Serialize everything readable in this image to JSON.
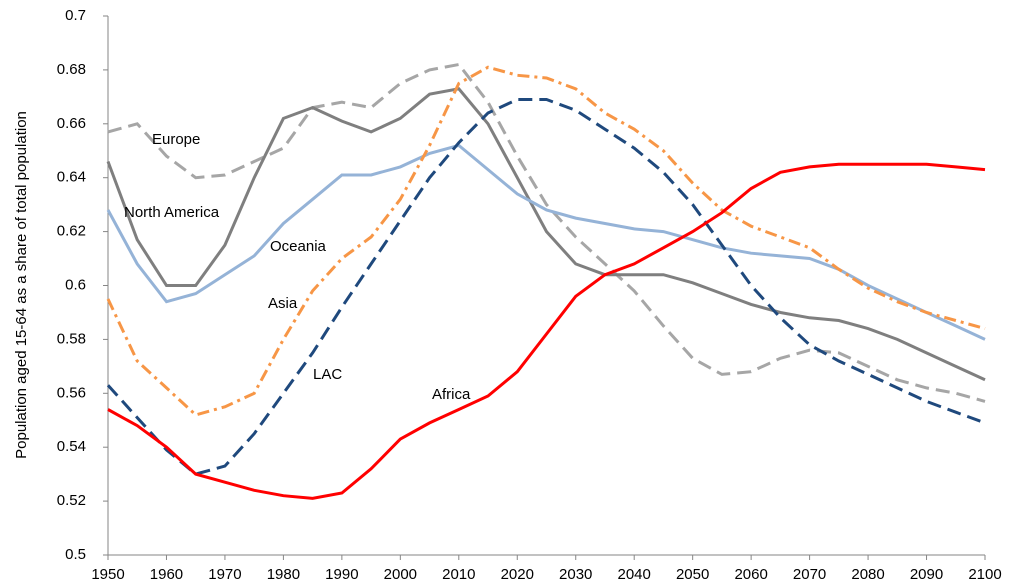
{
  "chart_data": {
    "type": "line",
    "y_label": "Population aged 15-64 as a share of total population",
    "x": [
      1950,
      1955,
      1960,
      1965,
      1970,
      1975,
      1980,
      1985,
      1990,
      1995,
      2000,
      2005,
      2010,
      2015,
      2020,
      2025,
      2030,
      2035,
      2040,
      2045,
      2050,
      2055,
      2060,
      2065,
      2070,
      2075,
      2080,
      2085,
      2090,
      2095,
      2100
    ],
    "xlim": [
      1950,
      2100
    ],
    "xticks": [
      1950,
      1960,
      1970,
      1980,
      1990,
      2000,
      2010,
      2020,
      2030,
      2040,
      2050,
      2060,
      2070,
      2080,
      2090,
      2100
    ],
    "ylim": [
      0.5,
      0.7
    ],
    "yticks": [
      0.5,
      0.52,
      0.54,
      0.56,
      0.58,
      0.6,
      0.62,
      0.64,
      0.66,
      0.68,
      0.7
    ],
    "grid": false,
    "series": [
      {
        "name": "Europe",
        "color": "#a6a6a6",
        "dash": "dashed",
        "values": [
          0.657,
          0.66,
          0.648,
          0.64,
          0.641,
          0.646,
          0.651,
          0.666,
          0.668,
          0.666,
          0.675,
          0.68,
          0.682,
          0.668,
          0.648,
          0.63,
          0.618,
          0.608,
          0.598,
          0.585,
          0.573,
          0.567,
          0.568,
          0.573,
          0.576,
          0.575,
          0.57,
          0.565,
          0.562,
          0.56,
          0.557
        ]
      },
      {
        "name": "North America",
        "color": "#7f7f7f",
        "dash": "solid",
        "values": [
          0.646,
          0.617,
          0.6,
          0.6,
          0.615,
          0.64,
          0.662,
          0.666,
          0.661,
          0.657,
          0.662,
          0.671,
          0.673,
          0.66,
          0.64,
          0.62,
          0.608,
          0.604,
          0.604,
          0.604,
          0.601,
          0.597,
          0.593,
          0.59,
          0.588,
          0.587,
          0.584,
          0.58,
          0.575,
          0.57,
          0.565
        ]
      },
      {
        "name": "Oceania",
        "color": "#95b3d7",
        "dash": "solid",
        "values": [
          0.628,
          0.608,
          0.594,
          0.597,
          0.604,
          0.611,
          0.623,
          0.632,
          0.641,
          0.641,
          0.644,
          0.649,
          0.652,
          0.643,
          0.634,
          0.628,
          0.625,
          0.623,
          0.621,
          0.62,
          0.617,
          0.614,
          0.612,
          0.611,
          0.61,
          0.606,
          0.6,
          0.595,
          0.59,
          0.585,
          0.58
        ]
      },
      {
        "name": "Asia",
        "color": "#f79646",
        "dash": "dash-dot",
        "values": [
          0.595,
          0.572,
          0.562,
          0.552,
          0.555,
          0.56,
          0.58,
          0.598,
          0.61,
          0.618,
          0.632,
          0.652,
          0.675,
          0.681,
          0.678,
          0.677,
          0.673,
          0.664,
          0.658,
          0.65,
          0.638,
          0.628,
          0.622,
          0.618,
          0.614,
          0.606,
          0.599,
          0.594,
          0.59,
          0.587,
          0.584
        ]
      },
      {
        "name": "LAC",
        "color": "#1f497d",
        "dash": "dashed",
        "values": [
          0.563,
          0.551,
          0.539,
          0.53,
          0.533,
          0.545,
          0.56,
          0.575,
          0.592,
          0.608,
          0.624,
          0.64,
          0.653,
          0.664,
          0.669,
          0.669,
          0.665,
          0.658,
          0.651,
          0.642,
          0.63,
          0.615,
          0.6,
          0.588,
          0.578,
          0.572,
          0.567,
          0.562,
          0.557,
          0.553,
          0.549
        ]
      },
      {
        "name": "Africa",
        "color": "#ff0000",
        "dash": "solid",
        "values": [
          0.554,
          0.548,
          0.54,
          0.53,
          0.527,
          0.524,
          0.522,
          0.521,
          0.523,
          0.532,
          0.543,
          0.549,
          0.554,
          0.559,
          0.568,
          0.582,
          0.596,
          0.604,
          0.608,
          0.614,
          0.62,
          0.627,
          0.636,
          0.642,
          0.644,
          0.645,
          0.645,
          0.645,
          0.645,
          0.644,
          0.643
        ]
      }
    ]
  }
}
